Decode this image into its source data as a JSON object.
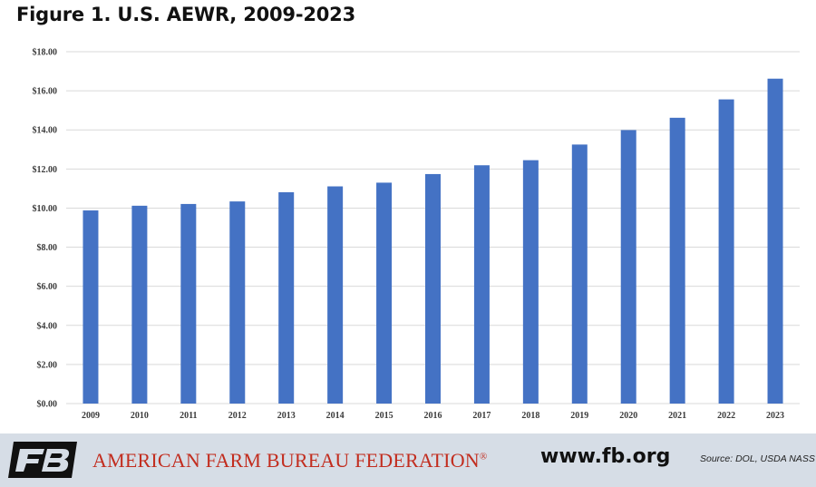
{
  "title": "Figure 1. U.S. AEWR, 2009-2023",
  "chart_data": {
    "type": "bar",
    "categories": [
      "2009",
      "2010",
      "2011",
      "2012",
      "2013",
      "2014",
      "2015",
      "2016",
      "2017",
      "2018",
      "2019",
      "2020",
      "2021",
      "2022",
      "2023"
    ],
    "values": [
      9.88,
      10.12,
      10.21,
      10.34,
      10.81,
      11.11,
      11.3,
      11.74,
      12.19,
      12.45,
      13.25,
      13.99,
      14.62,
      15.56,
      16.62
    ],
    "ylim": [
      0,
      18
    ],
    "yticks": [
      "$0.00",
      "$2.00",
      "$4.00",
      "$6.00",
      "$8.00",
      "$10.00",
      "$12.00",
      "$14.00",
      "$16.00",
      "$18.00"
    ],
    "grid": true,
    "bar_color": "#4472c4",
    "grid_color": "#d9d9d9"
  },
  "footer": {
    "logo_icon": "fb-logo-icon",
    "organization": "AMERICAN FARM BUREAU FEDERATION",
    "registered_mark": "®",
    "website": "www.fb.org",
    "source": "Source: DOL, USDA NASS"
  }
}
